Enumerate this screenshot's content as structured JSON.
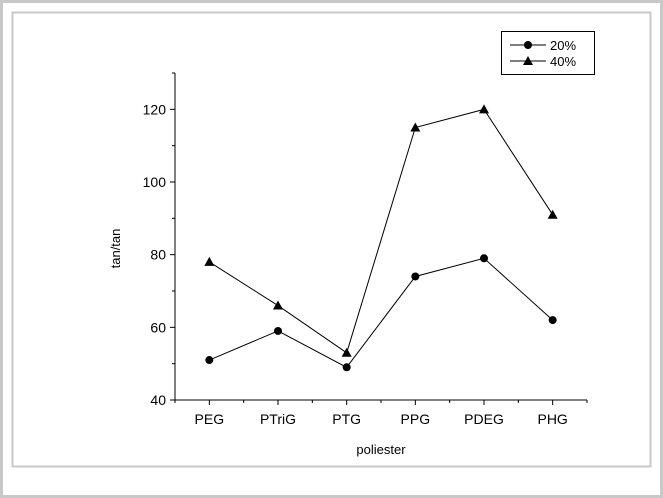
{
  "chart_data": {
    "type": "line",
    "title": "",
    "xlabel": "poliester",
    "ylabel": "tan/tan",
    "categories": [
      "PEG",
      "PTriG",
      "PTG",
      "PPG",
      "PDEG",
      "PHG"
    ],
    "ylim": [
      40,
      130
    ],
    "yticks": [
      40,
      60,
      80,
      100,
      120
    ],
    "grid": false,
    "legend_position": "top-right",
    "series": [
      {
        "name": "20%",
        "marker": "circle",
        "values": [
          51,
          59,
          49,
          74,
          79,
          62
        ]
      },
      {
        "name": "40%",
        "marker": "triangle",
        "values": [
          78,
          66,
          53,
          115,
          120,
          91
        ]
      }
    ]
  },
  "colors": {
    "frame": "#bfbfbf",
    "axis": "#000000",
    "series": "#000000"
  }
}
